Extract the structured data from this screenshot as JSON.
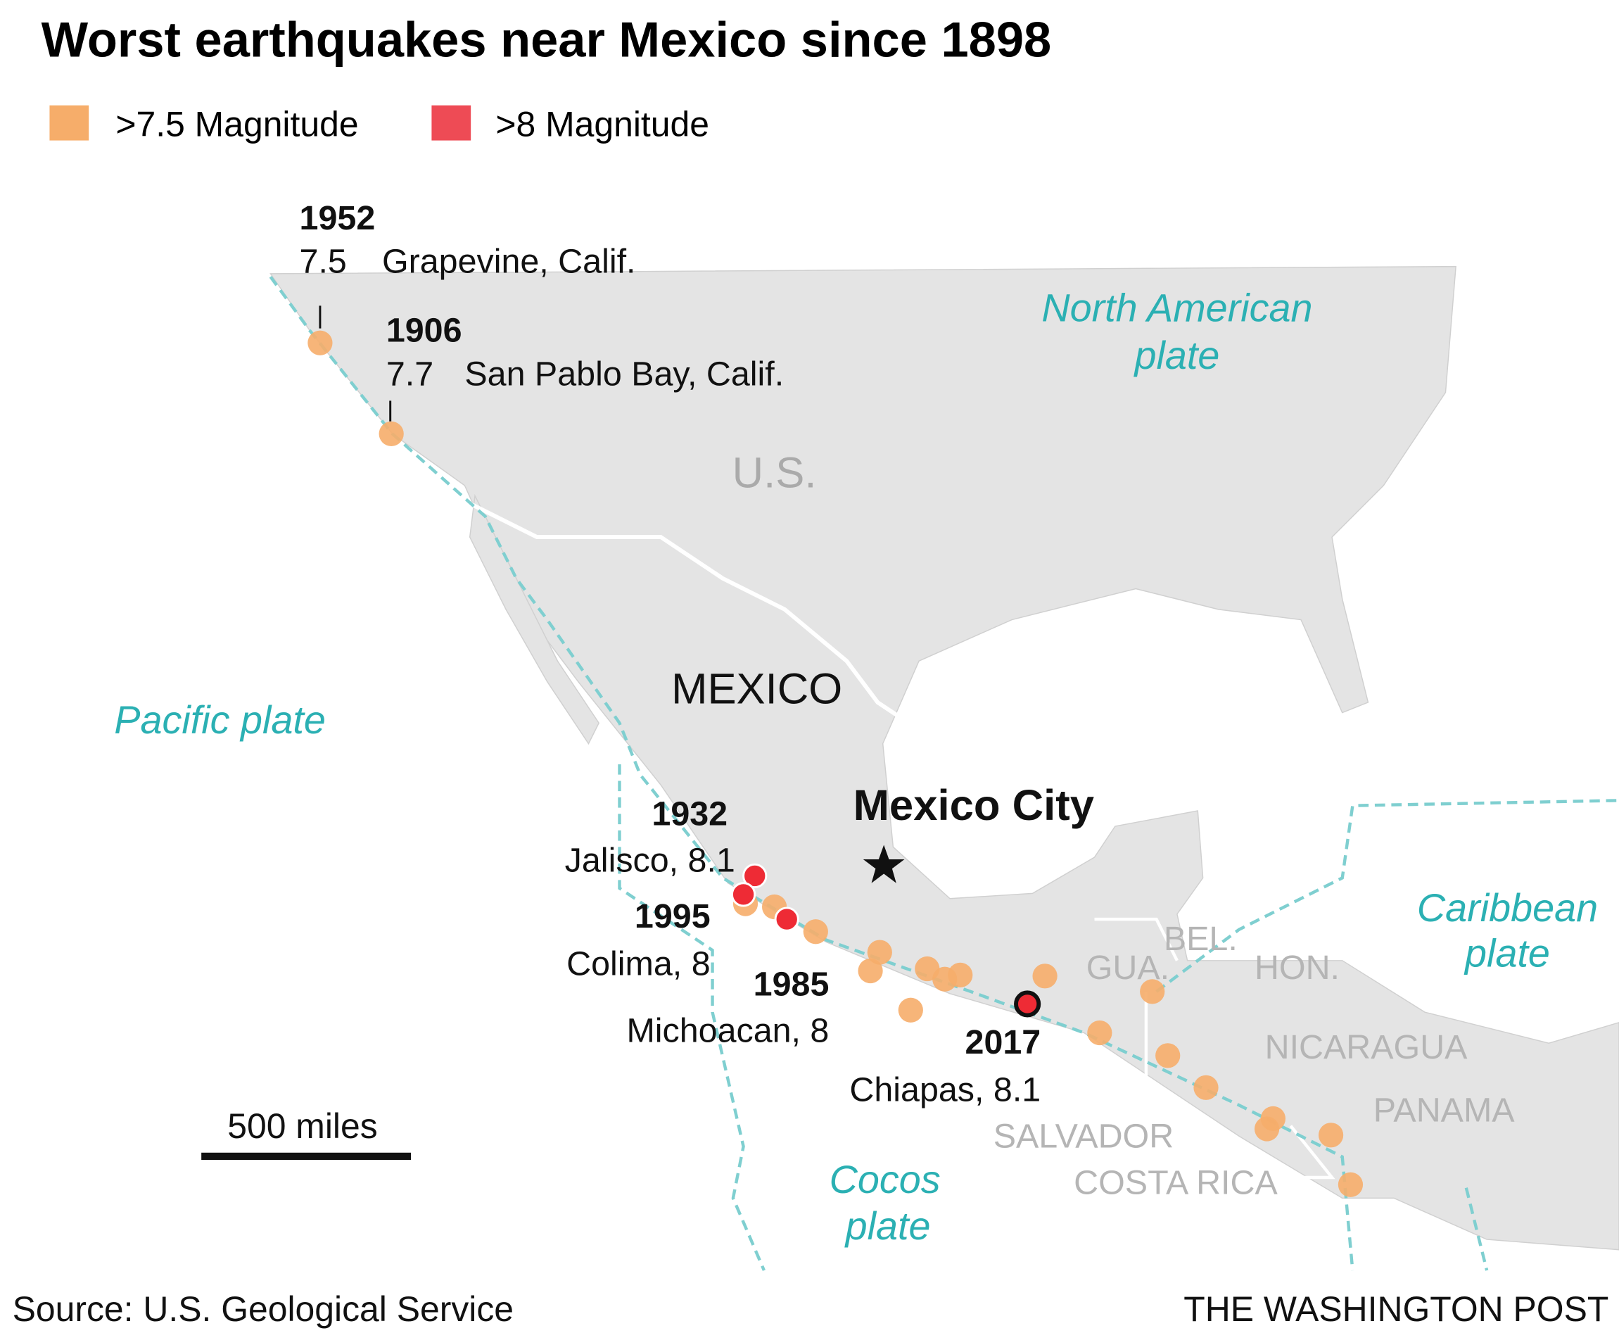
{
  "title": "Worst earthquakes near Mexico since 1898",
  "legend": [
    {
      "label": ">7.5 Magnitude",
      "color": "#f6ad6a"
    },
    {
      "label": ">8 Magnitude",
      "color": "#ee4b55"
    }
  ],
  "quakes": [
    {
      "year": "1952",
      "magnitude": "7.5",
      "place": "Grapevine, Calif."
    },
    {
      "year": "1906",
      "magnitude": "7.7",
      "place": "San Pablo Bay, Calif."
    },
    {
      "year": "1932",
      "place": "Jalisco, 8.1"
    },
    {
      "year": "1995",
      "place": "Colima, 8"
    },
    {
      "year": "1985",
      "place": "Michoacan, 8"
    },
    {
      "year": "2017",
      "place": "Chiapas, 8.1"
    }
  ],
  "plates": [
    [
      "North American",
      "plate"
    ],
    [
      "Pacific plate"
    ],
    [
      "Caribbean",
      "plate"
    ],
    [
      "Cocos",
      "plate"
    ]
  ],
  "places": {
    "us": "U.S.",
    "mexico": "MEXICO",
    "capital": "Mexico City",
    "countries": [
      "BEL.",
      "GUA.",
      "HON.",
      "NICARAGUA",
      "PANAMA",
      "SALVADOR",
      "COSTA RICA"
    ]
  },
  "scale": "500 miles",
  "source": "Source: U.S. Geological Service",
  "credit": "THE WASHINGTON POST"
}
